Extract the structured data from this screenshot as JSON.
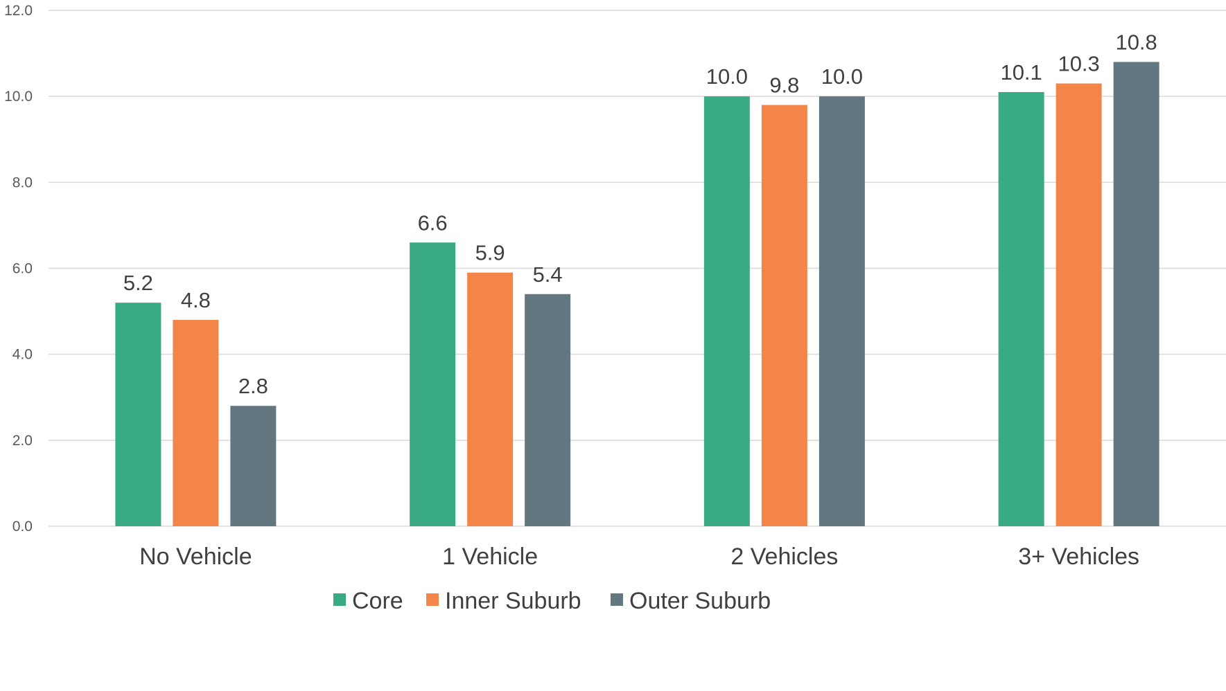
{
  "chart_data": {
    "type": "bar",
    "categories": [
      "No Vehicle",
      "1 Vehicle",
      "2 Vehicles",
      "3+ Vehicles"
    ],
    "series": [
      {
        "name": "Core",
        "color": "#3aaa82",
        "values": [
          5.2,
          6.6,
          10.0,
          10.1
        ],
        "labels": [
          "5.2",
          "6.6",
          "10.0",
          "10.1"
        ]
      },
      {
        "name": "Inner Suburb",
        "color": "#f48548",
        "values": [
          4.8,
          5.9,
          9.8,
          10.3
        ],
        "labels": [
          "4.8",
          "5.9",
          "9.8",
          "10.3"
        ]
      },
      {
        "name": "Outer Suburb",
        "color": "#637781",
        "values": [
          2.8,
          5.4,
          10.0,
          10.8
        ],
        "labels": [
          "2.8",
          "5.4",
          "10.0",
          "10.8"
        ]
      }
    ],
    "yticks": [
      "0.0",
      "2.0",
      "4.0",
      "6.0",
      "8.0",
      "10.0",
      "12.0"
    ],
    "ylim": [
      0,
      12
    ],
    "grid": true,
    "legend_position": "bottom"
  }
}
